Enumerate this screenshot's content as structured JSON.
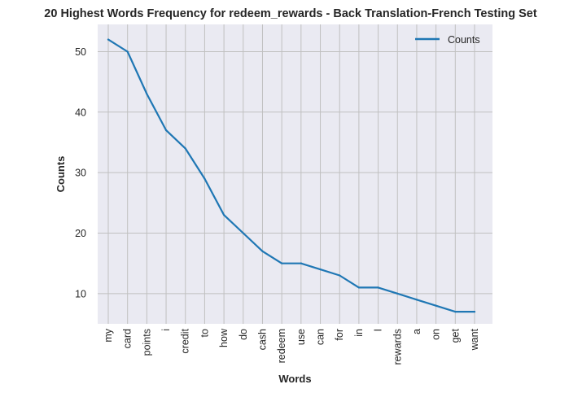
{
  "chart_data": {
    "type": "line",
    "title": "20 Highest Words Frequency for redeem_rewards - Back Translation-French Testing Set",
    "xlabel": "Words",
    "ylabel": "Counts",
    "categories": [
      "my",
      "card",
      "points",
      "i",
      "credit",
      "to",
      "how",
      "do",
      "cash",
      "redeem",
      "use",
      "can",
      "for",
      "in",
      "I",
      "rewards",
      "a",
      "on",
      "get",
      "want"
    ],
    "series": [
      {
        "name": "Counts",
        "values": [
          52,
          50,
          43,
          37,
          34,
          29,
          23,
          20,
          17,
          15,
          15,
          14,
          13,
          11,
          11,
          10,
          9,
          8,
          7,
          7
        ],
        "color": "#1f77b4"
      }
    ],
    "ylim": [
      5,
      54.5
    ],
    "yticks": [
      10,
      20,
      30,
      40,
      50
    ],
    "grid": true,
    "legend_position": "top-right",
    "colors": {
      "plot_background": "#eaeaf2",
      "grid": "#c0c0c0",
      "line": "#1f77b4",
      "text": "#262626"
    }
  }
}
